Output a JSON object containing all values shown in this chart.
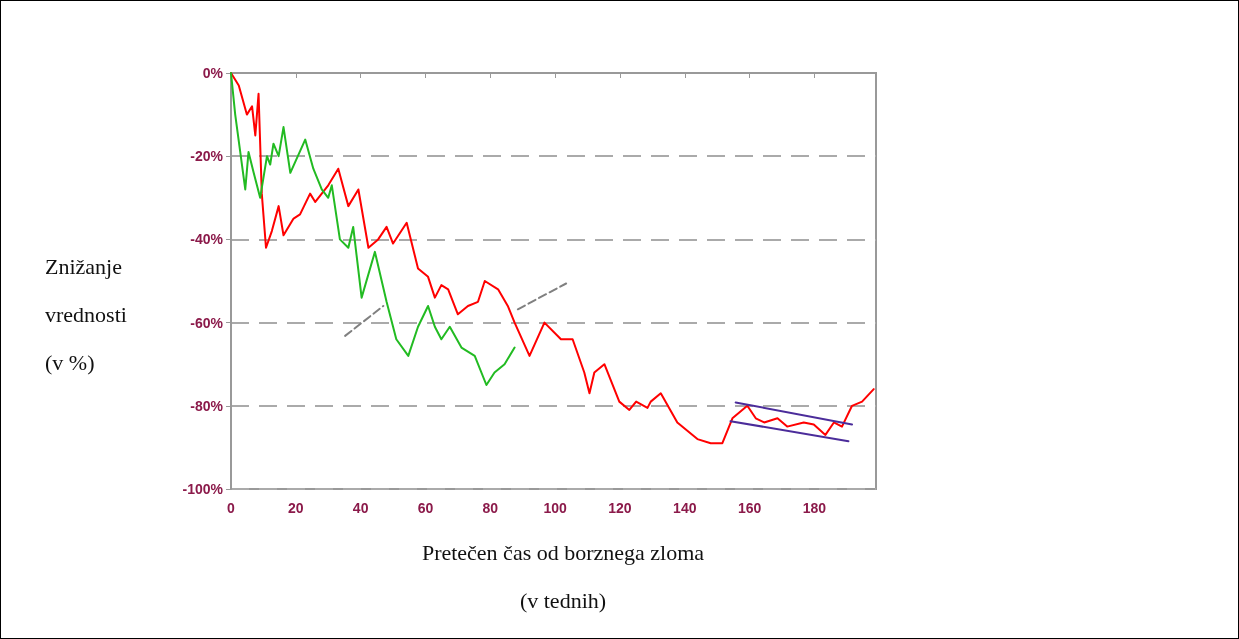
{
  "chart_data": {
    "type": "line",
    "xlabel": "Pretečen čas od borznega zloma\n(v tednih)",
    "ylabel": "Znižanje\nvrednosti\n(v %)",
    "xlim": [
      0,
      199
    ],
    "xticks": [
      0,
      20,
      40,
      60,
      80,
      100,
      120,
      140,
      160,
      180
    ],
    "ylim": [
      -100,
      0
    ],
    "yticks": [
      {
        "value": -100,
        "label": "-100%"
      },
      {
        "value": -80,
        "label": "-80%"
      },
      {
        "value": -60,
        "label": "-60%"
      },
      {
        "value": -40,
        "label": "-40%"
      },
      {
        "value": -20,
        "label": "-20%"
      },
      {
        "value": 0,
        "label": "0%"
      }
    ],
    "grid": "y",
    "marker": "none",
    "series": [
      {
        "color": "#ff0000",
        "x": [
          0,
          2.4,
          4.9,
          6.5,
          7.5,
          8.5,
          9.5,
          10.8,
          12.6,
          14.7,
          16.2,
          19.3,
          21.3,
          24.4,
          26,
          30,
          33.1,
          36.2,
          39.3,
          42.4,
          45.4,
          48,
          50,
          54.2,
          57.7,
          60.8,
          62.9,
          64.9,
          67,
          70,
          73.1,
          76.2,
          78.3,
          82.4,
          85.4,
          87.5,
          92.1,
          96.7,
          101.8,
          105.4,
          109,
          110.6,
          112.1,
          115.2,
          119.8,
          122.9,
          125,
          128.5,
          129.5,
          132.6,
          137.7,
          143.9,
          148,
          151.6,
          154.7,
          159.3,
          161.9,
          164.5,
          168.6,
          171.6,
          176.7,
          179.8,
          183.4,
          186,
          188.5,
          191.6,
          194.7,
          198.3
        ],
        "values": [
          0,
          -3,
          -10,
          -8,
          -15,
          -5,
          -29,
          -42,
          -38,
          -32,
          -39,
          -35,
          -34,
          -29,
          -31,
          -27,
          -23,
          -32,
          -28,
          -42,
          -40,
          -37,
          -41,
          -36,
          -47,
          -49,
          -54,
          -51,
          -52,
          -58,
          -56,
          -55,
          -50,
          -52,
          -56,
          -60,
          -68,
          -60,
          -64,
          -64,
          -72,
          -77,
          -72,
          -70,
          -79,
          -81,
          -79,
          -80.5,
          -79,
          -77,
          -84,
          -88,
          -89,
          -89,
          -83,
          -80,
          -83,
          -84,
          -83,
          -85,
          -84,
          -84.5,
          -87,
          -84,
          -85,
          -80,
          -79,
          -76
        ]
      },
      {
        "color": "#22bb22",
        "x": [
          0,
          1.3,
          4.4,
          5.4,
          7,
          9,
          11.1,
          12.1,
          13.1,
          14.7,
          16.2,
          18.3,
          22.9,
          25.4,
          28,
          30,
          31.1,
          33.6,
          36.2,
          37.7,
          40.3,
          44.4,
          48,
          51,
          54.7,
          57.7,
          60.8,
          62.9,
          64.9,
          67.5,
          71.1,
          75.2,
          78.8,
          81.3,
          84.4,
          87.5
        ],
        "values": [
          0,
          -10,
          -28,
          -19,
          -24,
          -30,
          -20,
          -22,
          -17,
          -20,
          -13,
          -24,
          -16,
          -23,
          -28,
          -30,
          -27,
          -40,
          -42,
          -37,
          -54,
          -43,
          -55,
          -64,
          -68,
          -61,
          -56,
          -61,
          -64,
          -61,
          -66,
          -68,
          -75,
          -72,
          -70,
          -66
        ]
      },
      {
        "color": "#4b2c9a",
        "x": [
          155.7,
          191.6
        ],
        "values": [
          -79.2,
          -84.5
        ]
      },
      {
        "color": "#4b2c9a",
        "x": [
          154.1,
          190.5
        ],
        "values": [
          -83.7,
          -88.5
        ]
      },
      {
        "color": "#808080",
        "line_style": "dashed",
        "x": [
          35.2,
          47
        ],
        "values": [
          -63.2,
          -56
        ]
      },
      {
        "color": "#808080",
        "line_style": "dashed",
        "x": [
          88.5,
          103.4
        ],
        "values": [
          -56.8,
          -50.6
        ]
      }
    ]
  }
}
